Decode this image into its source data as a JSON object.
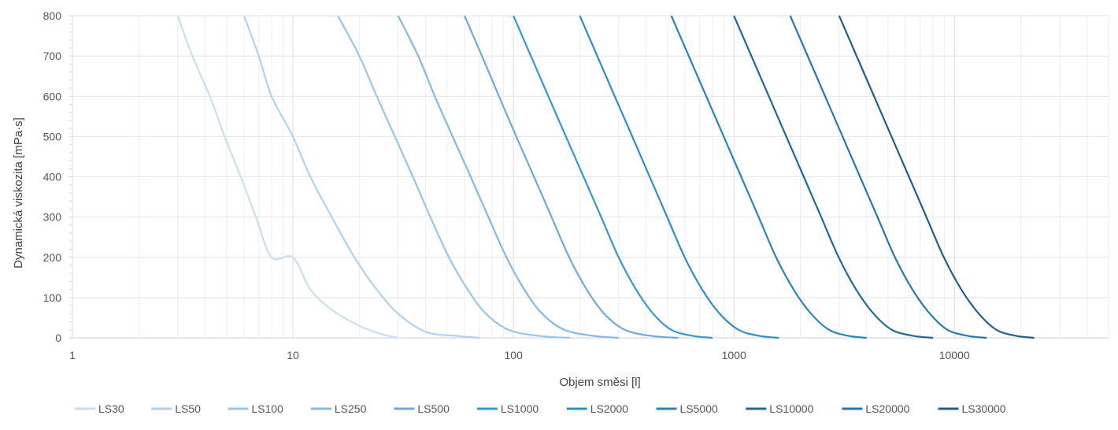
{
  "chart_data": {
    "type": "line",
    "xlabel": "Objem směsi [l]",
    "ylabel": "Dynamická viskozita [mPa·s]",
    "x_scale": "log",
    "xlim": [
      1,
      50000
    ],
    "ylim": [
      0,
      800
    ],
    "x_ticks": [
      1,
      10,
      100,
      1000,
      10000
    ],
    "x_tick_labels": [
      "1",
      "10",
      "100",
      "1000",
      "10000"
    ],
    "y_ticks": [
      0,
      100,
      200,
      300,
      400,
      500,
      600,
      700,
      800
    ],
    "y_tick_labels": [
      "0",
      "100",
      "200",
      "300",
      "400",
      "500",
      "600",
      "700",
      "800"
    ],
    "grid": true,
    "legend_position": "bottom",
    "series": [
      {
        "name": "LS30",
        "color": "#c9dff0",
        "points": [
          [
            3,
            800
          ],
          [
            3.5,
            700
          ],
          [
            4.2,
            600
          ],
          [
            4.9,
            500
          ],
          [
            5.8,
            400
          ],
          [
            6.8,
            300
          ],
          [
            8,
            200
          ],
          [
            10,
            200
          ],
          [
            12,
            120
          ],
          [
            15,
            70
          ],
          [
            20,
            30
          ],
          [
            25,
            10
          ],
          [
            30,
            0
          ]
        ]
      },
      {
        "name": "LS50",
        "color": "#b2d2ec",
        "points": [
          [
            6,
            800
          ],
          [
            7,
            700
          ],
          [
            8,
            600
          ],
          [
            10,
            500
          ],
          [
            12,
            400
          ],
          [
            15,
            300
          ],
          [
            19,
            200
          ],
          [
            24,
            120
          ],
          [
            30,
            60
          ],
          [
            40,
            15
          ],
          [
            55,
            5
          ],
          [
            70,
            0
          ]
        ]
      },
      {
        "name": "LS100",
        "color": "#9cc5e7",
        "points": [
          [
            16,
            800
          ],
          [
            20,
            700
          ],
          [
            24,
            600
          ],
          [
            29,
            500
          ],
          [
            35,
            400
          ],
          [
            42,
            300
          ],
          [
            51,
            200
          ],
          [
            62,
            120
          ],
          [
            75,
            60
          ],
          [
            95,
            20
          ],
          [
            130,
            5
          ],
          [
            180,
            0
          ]
        ]
      },
      {
        "name": "LS250",
        "color": "#86b8e1",
        "points": [
          [
            30,
            800
          ],
          [
            37,
            700
          ],
          [
            44,
            600
          ],
          [
            53,
            500
          ],
          [
            64,
            400
          ],
          [
            77,
            300
          ],
          [
            93,
            200
          ],
          [
            112,
            120
          ],
          [
            135,
            60
          ],
          [
            170,
            20
          ],
          [
            230,
            5
          ],
          [
            300,
            0
          ]
        ]
      },
      {
        "name": "LS500",
        "color": "#6eaadb",
        "points": [
          [
            60,
            800
          ],
          [
            72,
            700
          ],
          [
            86,
            600
          ],
          [
            103,
            500
          ],
          [
            124,
            400
          ],
          [
            149,
            300
          ],
          [
            179,
            200
          ],
          [
            215,
            120
          ],
          [
            258,
            60
          ],
          [
            320,
            20
          ],
          [
            420,
            5
          ],
          [
            560,
            0
          ]
        ]
      },
      {
        "name": "LS1000",
        "color": "#3598d3",
        "points": [
          [
            100,
            800
          ],
          [
            120,
            700
          ],
          [
            144,
            600
          ],
          [
            173,
            500
          ],
          [
            208,
            400
          ],
          [
            250,
            300
          ],
          [
            300,
            200
          ],
          [
            360,
            120
          ],
          [
            430,
            60
          ],
          [
            520,
            20
          ],
          [
            650,
            5
          ],
          [
            800,
            0
          ]
        ]
      },
      {
        "name": "LS2000",
        "color": "#2e8fc8",
        "points": [
          [
            200,
            800
          ],
          [
            240,
            700
          ],
          [
            288,
            600
          ],
          [
            346,
            500
          ],
          [
            415,
            400
          ],
          [
            498,
            300
          ],
          [
            598,
            200
          ],
          [
            718,
            120
          ],
          [
            862,
            60
          ],
          [
            1050,
            20
          ],
          [
            1300,
            5
          ],
          [
            1600,
            0
          ]
        ]
      },
      {
        "name": "LS5000",
        "color": "#2a85bb",
        "points": [
          [
            520,
            800
          ],
          [
            624,
            700
          ],
          [
            749,
            600
          ],
          [
            899,
            500
          ],
          [
            1079,
            400
          ],
          [
            1295,
            300
          ],
          [
            1554,
            200
          ],
          [
            1865,
            120
          ],
          [
            2238,
            60
          ],
          [
            2700,
            20
          ],
          [
            3300,
            5
          ],
          [
            4000,
            0
          ]
        ]
      },
      {
        "name": "LS10000",
        "color": "#1f6a99",
        "points": [
          [
            1000,
            800
          ],
          [
            1200,
            700
          ],
          [
            1440,
            600
          ],
          [
            1728,
            500
          ],
          [
            2074,
            400
          ],
          [
            2488,
            300
          ],
          [
            2986,
            200
          ],
          [
            3583,
            120
          ],
          [
            4300,
            60
          ],
          [
            5200,
            20
          ],
          [
            6500,
            5
          ],
          [
            8000,
            0
          ]
        ]
      },
      {
        "name": "LS20000",
        "color": "#2679ad",
        "points": [
          [
            1800,
            800
          ],
          [
            2160,
            700
          ],
          [
            2592,
            600
          ],
          [
            3110,
            500
          ],
          [
            3732,
            400
          ],
          [
            4479,
            300
          ],
          [
            5375,
            200
          ],
          [
            6450,
            120
          ],
          [
            7740,
            60
          ],
          [
            9300,
            20
          ],
          [
            11500,
            5
          ],
          [
            14000,
            0
          ]
        ]
      },
      {
        "name": "LS30000",
        "color": "#245f88",
        "points": [
          [
            3000,
            800
          ],
          [
            3600,
            700
          ],
          [
            4320,
            600
          ],
          [
            5184,
            500
          ],
          [
            6221,
            400
          ],
          [
            7465,
            300
          ],
          [
            8958,
            200
          ],
          [
            10750,
            120
          ],
          [
            12900,
            60
          ],
          [
            15500,
            20
          ],
          [
            19000,
            5
          ],
          [
            23000,
            0
          ]
        ]
      }
    ]
  }
}
